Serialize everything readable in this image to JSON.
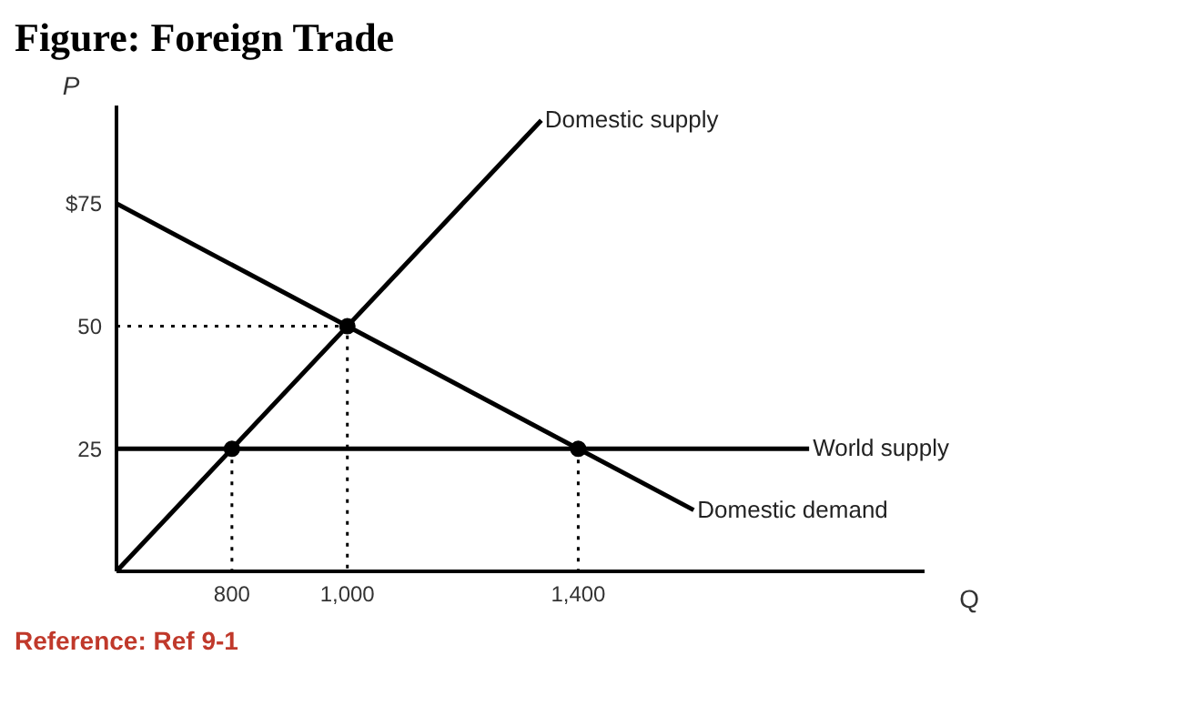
{
  "chart_data": {
    "type": "line",
    "title": "Figure: Foreign Trade",
    "xlabel": "Q",
    "ylabel": "P",
    "xlim": [
      600,
      2000
    ],
    "ylim": [
      0,
      95
    ],
    "xticks": [
      800,
      {
        "value": 1000,
        "label": "1,000"
      },
      {
        "value": 1400,
        "label": "1,400"
      }
    ],
    "yticks": [
      25,
      50,
      {
        "value": 75,
        "label": "$75"
      }
    ],
    "grid": false,
    "series": [
      {
        "name": "Domestic supply",
        "color": "#000000",
        "x": [
          600,
          1336
        ],
        "values": [
          0,
          92
        ]
      },
      {
        "name": "World supply",
        "color": "#000000",
        "x": [
          600,
          1800
        ],
        "values": [
          25,
          25
        ]
      },
      {
        "name": "Domestic demand",
        "color": "#000000",
        "x": [
          600,
          1600
        ],
        "values": [
          75,
          12.5
        ]
      },
      {
        "line_style": "dotted",
        "color": "#000000",
        "x": [
          600,
          1000,
          1000
        ],
        "values": [
          50,
          50,
          0
        ]
      },
      {
        "line_style": "dotted",
        "color": "#000000",
        "x": [
          800,
          800
        ],
        "values": [
          25,
          0
        ]
      },
      {
        "line_style": "dotted",
        "color": "#000000",
        "x": [
          1400,
          1400
        ],
        "values": [
          25,
          0
        ]
      },
      {
        "type": "scatter",
        "marker": "circle",
        "color": "#000000",
        "x": [
          800,
          1000,
          1400
        ],
        "values": [
          25,
          50,
          25
        ]
      }
    ],
    "annotations": [
      "Reference: Ref 9-1"
    ]
  }
}
